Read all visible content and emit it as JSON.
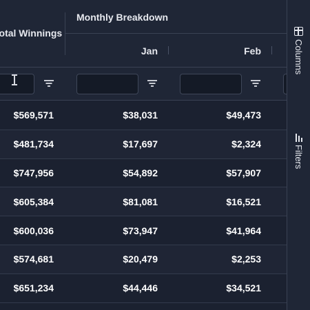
{
  "header": {
    "total_label": "Total Winnings",
    "group_label": "Monthly Breakdown",
    "months": [
      "Jan",
      "Feb"
    ]
  },
  "filters": {
    "total_value": "",
    "jan_value": "",
    "feb_value": ""
  },
  "rows": [
    {
      "total": "$569,571",
      "jan": "$38,031",
      "feb": "$49,473"
    },
    {
      "total": "$481,734",
      "jan": "$17,697",
      "feb": "$2,324"
    },
    {
      "total": "$747,956",
      "jan": "$54,892",
      "feb": "$57,907"
    },
    {
      "total": "$605,384",
      "jan": "$81,081",
      "feb": "$16,521"
    },
    {
      "total": "$600,036",
      "jan": "$73,947",
      "feb": "$41,964"
    },
    {
      "total": "$574,681",
      "jan": "$20,479",
      "feb": "$2,253"
    },
    {
      "total": "$651,234",
      "jan": "$44,446",
      "feb": "$34,521"
    }
  ],
  "side_panel": {
    "columns_label": "Columns",
    "filters_label": "Filters"
  }
}
